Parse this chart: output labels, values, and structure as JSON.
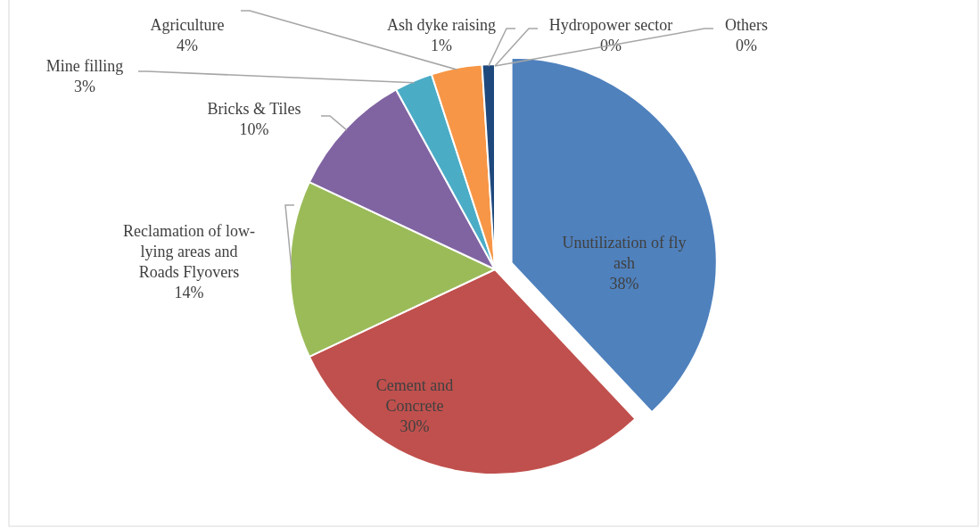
{
  "chart_data": {
    "type": "pie",
    "categories": [
      "Unutilization of fly ash",
      "Cement and Concrete",
      "Reclamation of low-lying areas and Roads Flyovers",
      "Bricks & Tiles",
      "Mine filling",
      "Agriculture",
      "Ash dyke raising",
      "Hydropower sector",
      "Others"
    ],
    "values": [
      38,
      30,
      14,
      10,
      3,
      4,
      1,
      0,
      0
    ],
    "colors": [
      "#4f81bd",
      "#c0504d",
      "#9bbb59",
      "#8064a2",
      "#4bacc6",
      "#f79646",
      "#1f497d",
      "#c0504d",
      "#9bbb59"
    ],
    "value_labels": [
      "38%",
      "30%",
      "14%",
      "10%",
      "3%",
      "4%",
      "1%",
      "0%",
      "0%"
    ]
  }
}
